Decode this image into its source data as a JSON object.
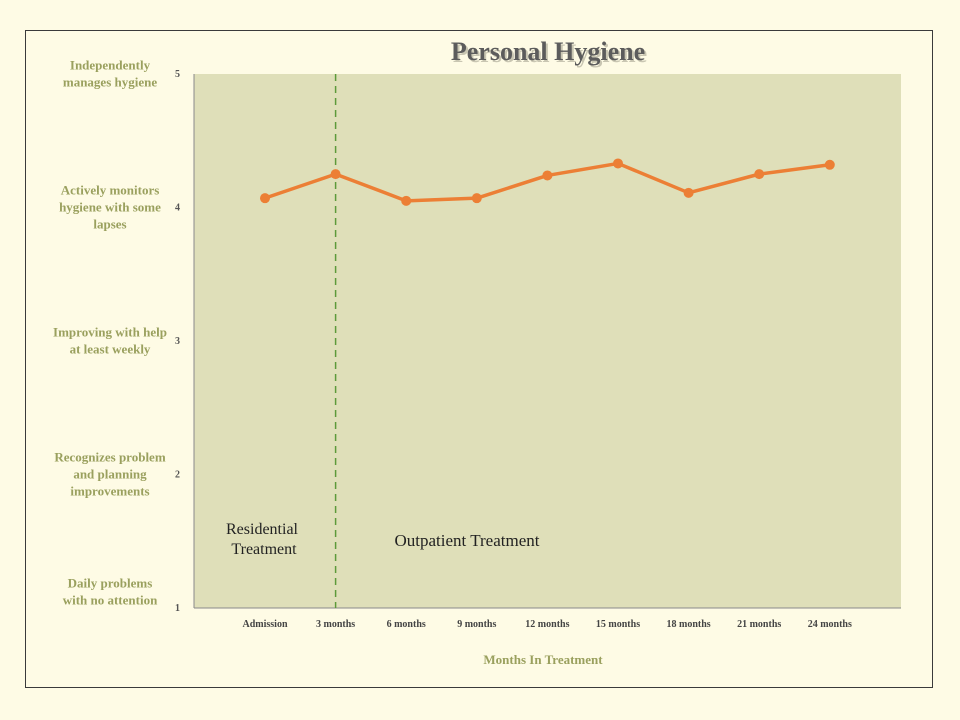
{
  "chart_data": {
    "type": "line",
    "title": "Personal Hygiene",
    "xlabel": "Months In Treatment",
    "ylabel": "",
    "ylim": [
      1,
      5
    ],
    "grid": false,
    "legend": "none",
    "categories": [
      "Admission",
      "3 months",
      "6 months",
      "9 months",
      "12 months",
      "15 months",
      "18 months",
      "21 months",
      "24 months"
    ],
    "y_ticks": [
      "1",
      "2",
      "3",
      "4",
      "5"
    ],
    "y_level_labels": [
      {
        "value": 5,
        "lines": [
          "Independently",
          "manages hygiene"
        ]
      },
      {
        "value": 4,
        "lines": [
          "Actively monitors",
          "hygiene with some",
          "lapses"
        ]
      },
      {
        "value": 3,
        "lines": [
          "Improving with help",
          "at least weekly"
        ]
      },
      {
        "value": 2,
        "lines": [
          "Recognizes problem",
          "and planning",
          "improvements"
        ]
      },
      {
        "value": 1,
        "lines": [
          "Daily problems",
          "with no attention"
        ]
      }
    ],
    "series": [
      {
        "values": [
          4.07,
          4.25,
          4.05,
          4.07,
          4.24,
          4.33,
          4.11,
          4.25,
          4.32
        ]
      }
    ],
    "divider_after_category": "3 months",
    "annotations": {
      "residential": [
        "Residential",
        "Treatment"
      ],
      "outpatient": "Outpatient Treatment"
    },
    "colors": {
      "plot_background": "#dfdfb9",
      "line": "#ec7f35",
      "divider": "#5d9a3a",
      "label": "#9aa05e"
    }
  }
}
